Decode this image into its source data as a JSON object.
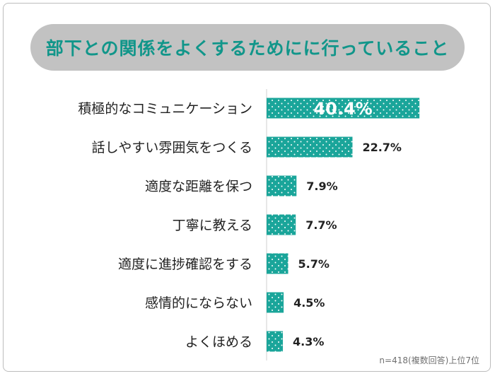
{
  "chart_data": {
    "type": "bar",
    "orientation": "horizontal",
    "title": "部下との関係をよくするためにに行っていること",
    "categories": [
      "積極的なコミュニケーション",
      "話しやすい雰囲気をつくる",
      "適度な距離を保つ",
      "丁寧に教える",
      "適度に進捗確認をする",
      "感情的にならない",
      "よくほめる"
    ],
    "values": [
      40.4,
      22.7,
      7.9,
      7.7,
      5.7,
      4.5,
      4.3
    ],
    "value_labels": [
      "40.4%",
      "22.7%",
      "7.9%",
      "7.7%",
      "5.7%",
      "4.5%",
      "4.3%"
    ],
    "xlim": [
      0,
      50
    ],
    "grid": false,
    "note": "n=418(複数回答)上位7位",
    "colors": {
      "bar": "#1aa59a",
      "dot": "#ffffff",
      "title_text": "#11968a",
      "title_bg": "#c2c2c2",
      "axis": "#cfcfcf",
      "label": "#222222"
    }
  }
}
